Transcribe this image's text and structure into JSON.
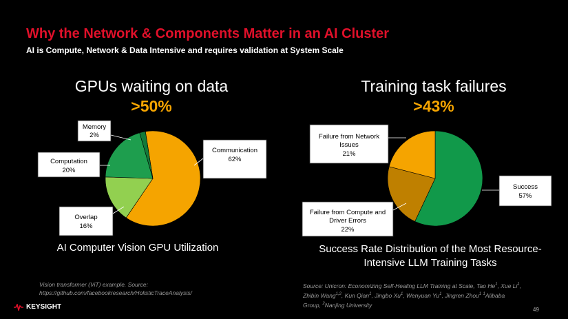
{
  "header": {
    "title": "Why the Network & Components Matter in an AI Cluster",
    "subtitle": "AI is Compute, Network & Data Intensive and requires validation at System Scale"
  },
  "left": {
    "heading": "GPUs waiting on data",
    "big_value": ">50%",
    "caption": "AI Computer Vision GPU Utilization",
    "source_line1": "Vision transformer (ViT) example. Source:",
    "source_line2": "https://github.com/facebookresearch/HolisticTraceAnalysis/"
  },
  "right": {
    "heading": "Training task failures",
    "big_value": ">43%",
    "caption_line1": "Success Rate Distribution of the Most Resource-",
    "caption_line2": "Intensive LLM Training Tasks",
    "source_line1": "Source:  Unicron: Economizing Self-Healing LLM Training at Scale,  Tao He",
    "source_sup1": "1",
    "source_mid1": ", Xue Li",
    "source_sup2": "1",
    "source_mid2": ",",
    "source_line2a": "Zhibin Wang",
    "source_sup3": "1,2",
    "source_line2b": ", Kun Qian",
    "source_sup4": "1",
    "source_line2c": ", Jingbo Xu",
    "source_sup5": "1",
    "source_line2d": ", Wenyuan Yu",
    "source_sup6": "1",
    "source_line2e": ", Jingren Zhou",
    "source_sup7": "1",
    "source_line2f": " ",
    "source_sup8": "1",
    "source_line2g": "Alibaba",
    "source_line3a": "Group, ",
    "source_sup9": "2",
    "source_line3b": "Nanjing University"
  },
  "footer": {
    "logo_text": "KEYSIGHT",
    "page_number": "49"
  },
  "colors": {
    "title_red": "#e0102a",
    "highlight_orange": "#f5a400"
  },
  "chart_data": [
    {
      "type": "pie",
      "title": "GPUs waiting on data",
      "categories": [
        "Communication",
        "Overlap",
        "Computation",
        "Memory"
      ],
      "values": [
        62,
        16,
        20,
        2
      ],
      "labels": [
        "62%",
        "16%",
        "20%",
        "2%"
      ],
      "colors": [
        "#f5a400",
        "#92d050",
        "#1e9e4e",
        "#137a3a"
      ]
    },
    {
      "type": "pie",
      "title": "Training task failures",
      "categories": [
        "Success",
        "Failure from Compute and Driver Errors",
        "Failure from Network Issues"
      ],
      "values": [
        57,
        22,
        21
      ],
      "labels": [
        "57%",
        "22%",
        "21%"
      ],
      "colors": [
        "#11994a",
        "#bf8000",
        "#f5a400"
      ]
    }
  ]
}
